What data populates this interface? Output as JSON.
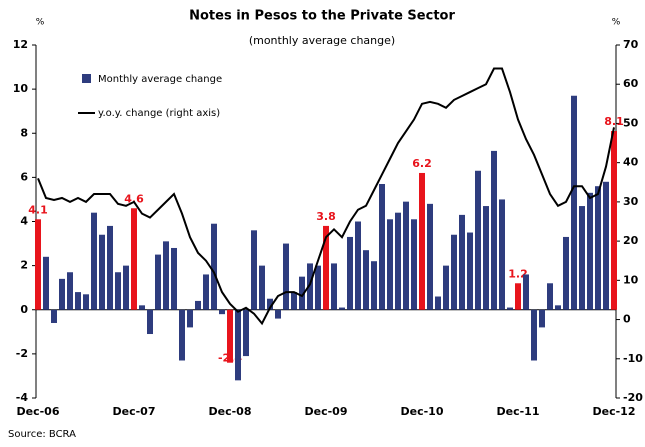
{
  "chart_data": {
    "type": "bar_line",
    "title": "Notes in Pesos to the Private Sector",
    "subtitle": "(monthly average change)",
    "y_label": "%",
    "y2_label": "%",
    "source": "Source: BCRA",
    "categories": [
      "Dec-06",
      null,
      null,
      null,
      null,
      null,
      null,
      null,
      null,
      null,
      null,
      null,
      "Dec-07",
      null,
      null,
      null,
      null,
      null,
      null,
      null,
      null,
      null,
      null,
      null,
      "Dec-08",
      null,
      null,
      null,
      null,
      null,
      null,
      null,
      null,
      null,
      null,
      null,
      "Dec-09",
      null,
      null,
      null,
      null,
      null,
      null,
      null,
      null,
      null,
      null,
      null,
      "Dec-10",
      null,
      null,
      null,
      null,
      null,
      null,
      null,
      null,
      null,
      null,
      null,
      "Dec-11",
      null,
      null,
      null,
      null,
      null,
      null,
      null,
      null,
      null,
      null,
      null,
      "Dec-12"
    ],
    "highlight_color": "#e8141c",
    "series": [
      {
        "name": "Monthly average change",
        "type": "bar",
        "color": "#2e3c7e",
        "values": [
          4.1,
          2.4,
          -0.6,
          1.4,
          1.7,
          0.8,
          0.7,
          4.4,
          3.4,
          3.8,
          1.7,
          2.0,
          4.6,
          0.2,
          -1.1,
          2.5,
          3.1,
          2.8,
          -2.3,
          -0.8,
          0.4,
          1.6,
          3.9,
          -0.2,
          -2.4,
          -3.2,
          -2.1,
          3.6,
          2.0,
          0.5,
          -0.4,
          3.0,
          0.8,
          1.5,
          2.1,
          2.0,
          3.8,
          2.1,
          0.1,
          3.3,
          4.0,
          2.7,
          2.2,
          5.7,
          4.1,
          4.4,
          4.9,
          4.1,
          6.2,
          4.8,
          0.6,
          2.0,
          3.4,
          4.3,
          3.5,
          6.3,
          4.7,
          7.2,
          5.0,
          0.1,
          1.2,
          1.6,
          -2.3,
          -0.8,
          1.2,
          0.2,
          3.3,
          9.7,
          4.7,
          5.3,
          5.6,
          5.8,
          8.1
        ],
        "value_labels": [
          "4.1",
          null,
          null,
          null,
          null,
          null,
          null,
          null,
          null,
          null,
          null,
          null,
          "4.6",
          null,
          null,
          null,
          null,
          null,
          null,
          null,
          null,
          null,
          null,
          null,
          "-2.4",
          null,
          null,
          null,
          null,
          null,
          null,
          null,
          null,
          null,
          null,
          null,
          "3.8",
          null,
          null,
          null,
          null,
          null,
          null,
          null,
          null,
          null,
          null,
          null,
          "6.2",
          null,
          null,
          null,
          null,
          null,
          null,
          null,
          null,
          null,
          null,
          null,
          "1.2",
          null,
          null,
          null,
          null,
          null,
          null,
          null,
          null,
          null,
          null,
          null,
          "8.1"
        ]
      },
      {
        "name": "y.o.y. change (right axis)",
        "type": "line",
        "axis": "y2",
        "color": "#000000",
        "values": [
          36,
          31,
          30.5,
          31,
          30,
          31,
          30,
          32,
          32,
          32,
          29.5,
          29,
          30,
          27,
          26,
          28,
          30,
          32,
          27,
          21,
          17,
          15,
          12,
          7,
          4,
          2,
          3,
          1.5,
          -1,
          3,
          6,
          7,
          7,
          6,
          9,
          15,
          21,
          23,
          21,
          25,
          28,
          29,
          33,
          37,
          41,
          45,
          48,
          51,
          55,
          55.5,
          55,
          54,
          56,
          57,
          58,
          59,
          60,
          64,
          64,
          58,
          51,
          46,
          42,
          37,
          32,
          29,
          30,
          34,
          34,
          31,
          32,
          39,
          49
        ]
      }
    ],
    "ylim": [
      -4,
      12
    ],
    "yticks": [
      -4,
      -2,
      0,
      2,
      4,
      6,
      8,
      10,
      12
    ],
    "y2lim": [
      -20,
      70
    ],
    "y2ticks": [
      -20,
      -10,
      0,
      10,
      20,
      30,
      40,
      50,
      60,
      70
    ]
  }
}
